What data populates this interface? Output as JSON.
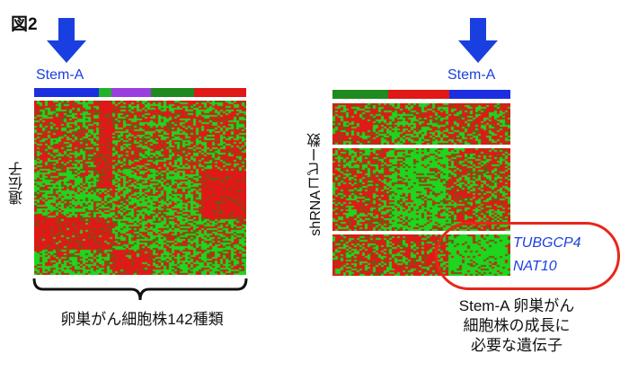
{
  "figure_label": "図2",
  "left_panel": {
    "stem_label": "Stem-A",
    "y_label": "遺伝子",
    "caption": "卵巣がん細胞株142種類",
    "strip_colors": [
      "#1b2fe0",
      "#22b22a",
      "#9a3ee0",
      "#1f8a1f",
      "#e01818"
    ]
  },
  "right_panel": {
    "stem_label": "Stem-A",
    "y_label": "shRNAコピー数",
    "genes": [
      "TUBGCP4",
      "NAT10"
    ],
    "caption_lines": [
      "Stem-A 卵巣がん",
      "細胞株の成長に",
      "必要な遺伝子"
    ],
    "strip_colors": [
      "#1f8a1f",
      "#e01818",
      "#1b2fe0"
    ]
  },
  "colors": {
    "arrow": "#1a3fe0",
    "heat_red": "#e01818",
    "heat_green": "#1ed61e",
    "highlight": "#e8261b"
  }
}
